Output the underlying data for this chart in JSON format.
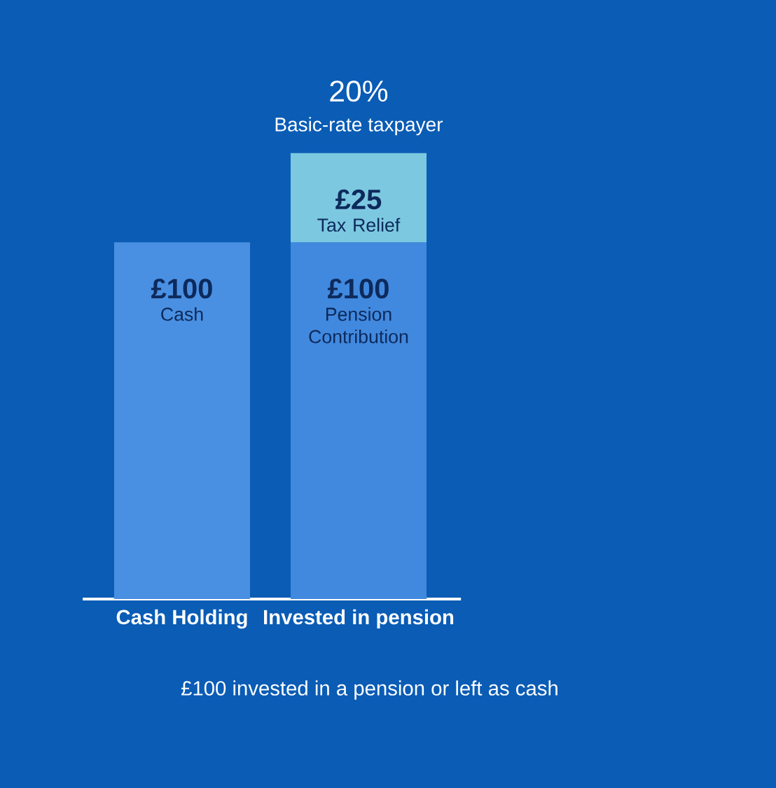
{
  "chart_data": {
    "type": "bar",
    "stacked": true,
    "categories": [
      "Cash Holding",
      "Invested in pension"
    ],
    "series": [
      {
        "name": "Cash",
        "color": "#4a90e2",
        "values": [
          100,
          null
        ],
        "value_labels": [
          "£100",
          null
        ]
      },
      {
        "name": "Pension Contribution",
        "color": "#4189de",
        "values": [
          null,
          100
        ],
        "value_labels": [
          null,
          "£100"
        ]
      },
      {
        "name": "Tax Relief",
        "color": "#7cc8e0",
        "values": [
          null,
          25
        ],
        "value_labels": [
          null,
          "£25"
        ]
      }
    ],
    "annotations": [
      {
        "text": "20%",
        "x": "Invested in pension",
        "y": 125
      },
      {
        "text": "Basic-rate taxpayer",
        "x": "Invested in pension",
        "y": 125
      },
      "£100 invested in a pension or left as cash"
    ],
    "grid": false,
    "legend": false
  }
}
